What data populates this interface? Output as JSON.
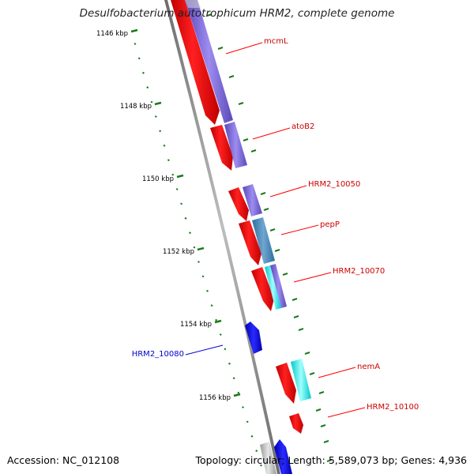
{
  "title": "Desulfobacterium autotrophicum HRM2, complete genome",
  "footer": {
    "accession_label": "Accession:",
    "accession": "NC_012108",
    "topology_label": "Topology:",
    "topology": "circular;",
    "length_label": "Length:",
    "length": "5,589,073 bp;",
    "genes_label": "Genes:",
    "genes": "4,936"
  },
  "ruler": {
    "tick_labels": [
      "1146 kbp",
      "1148 kbp",
      "1150 kbp",
      "1152 kbp",
      "1154 kbp",
      "1156 kbp"
    ],
    "label_color": "#000000",
    "tick_color": "#1a7a1a"
  },
  "genes": {
    "forward_color": "#ff0000",
    "reverse_color": "#0000ee",
    "labels": [
      {
        "name": "mcmL",
        "strand": "forward"
      },
      {
        "name": "atoB2",
        "strand": "forward"
      },
      {
        "name": "HRM2_10050",
        "strand": "forward"
      },
      {
        "name": "pepP",
        "strand": "forward"
      },
      {
        "name": "HRM2_10070",
        "strand": "forward"
      },
      {
        "name": "HRM2_10080",
        "strand": "reverse"
      },
      {
        "name": "nemA",
        "strand": "forward"
      },
      {
        "name": "HRM2_10100",
        "strand": "forward"
      }
    ]
  },
  "colors": {
    "backbone": "#8a8a8a",
    "cog_purple": "#7b68d8",
    "cog_steel": "#4a86b4",
    "cog_cyan": "#00f0f0",
    "cog_gray": "#b0b0b0",
    "label_line_forward": "#ff0000",
    "label_line_reverse": "#0000cc"
  }
}
